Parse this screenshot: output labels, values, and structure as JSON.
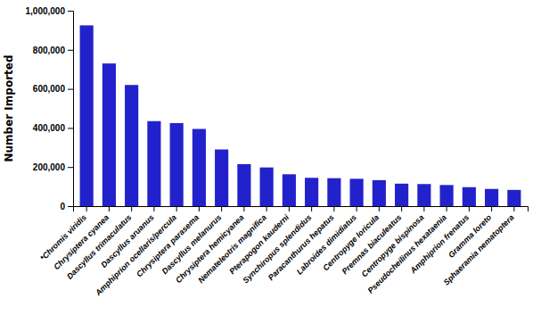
{
  "chart_data": {
    "type": "bar",
    "categories": [
      "*Chromis viridis",
      "Chrysiptera cyanea",
      "Dascyllus trimaculatus",
      "Dascyllus aruanus",
      "Amphiprion ocellaris/percula",
      "Chrysiptera parasema",
      "Dascyllus melanurus",
      "Chrysiptera hemicyanea",
      "Nemateleotris magnifica",
      "Pterapogon kauderni",
      "Synchiropus splendidus",
      "Paracanthurus hepatus",
      "Labroides dimidiatus",
      "Centropyge loricula",
      "Premnas biaculeatus",
      "Centropyge bispinosa",
      "Pseudocheilinus hexataenia",
      "Amphiprion frenatus",
      "Gramma loreto",
      "Sphaeramia nematoptera"
    ],
    "values": [
      925000,
      730000,
      620000,
      435000,
      425000,
      395000,
      290000,
      215000,
      198000,
      163000,
      145000,
      143000,
      140000,
      133000,
      115000,
      113000,
      108000,
      97000,
      88000,
      83000
    ],
    "color": "#2222cc",
    "ylabel": "Number Imported",
    "ylim": [
      0,
      1000000
    ],
    "yticks": [
      0,
      {
        "value": 200000,
        "label": "200,000"
      },
      {
        "value": 400000,
        "label": "400,000"
      },
      {
        "value": 600000,
        "label": "600,000"
      },
      {
        "value": 800000,
        "label": "800,000"
      },
      {
        "value": 1000000,
        "label": "1,000,000"
      }
    ],
    "grid": false
  }
}
